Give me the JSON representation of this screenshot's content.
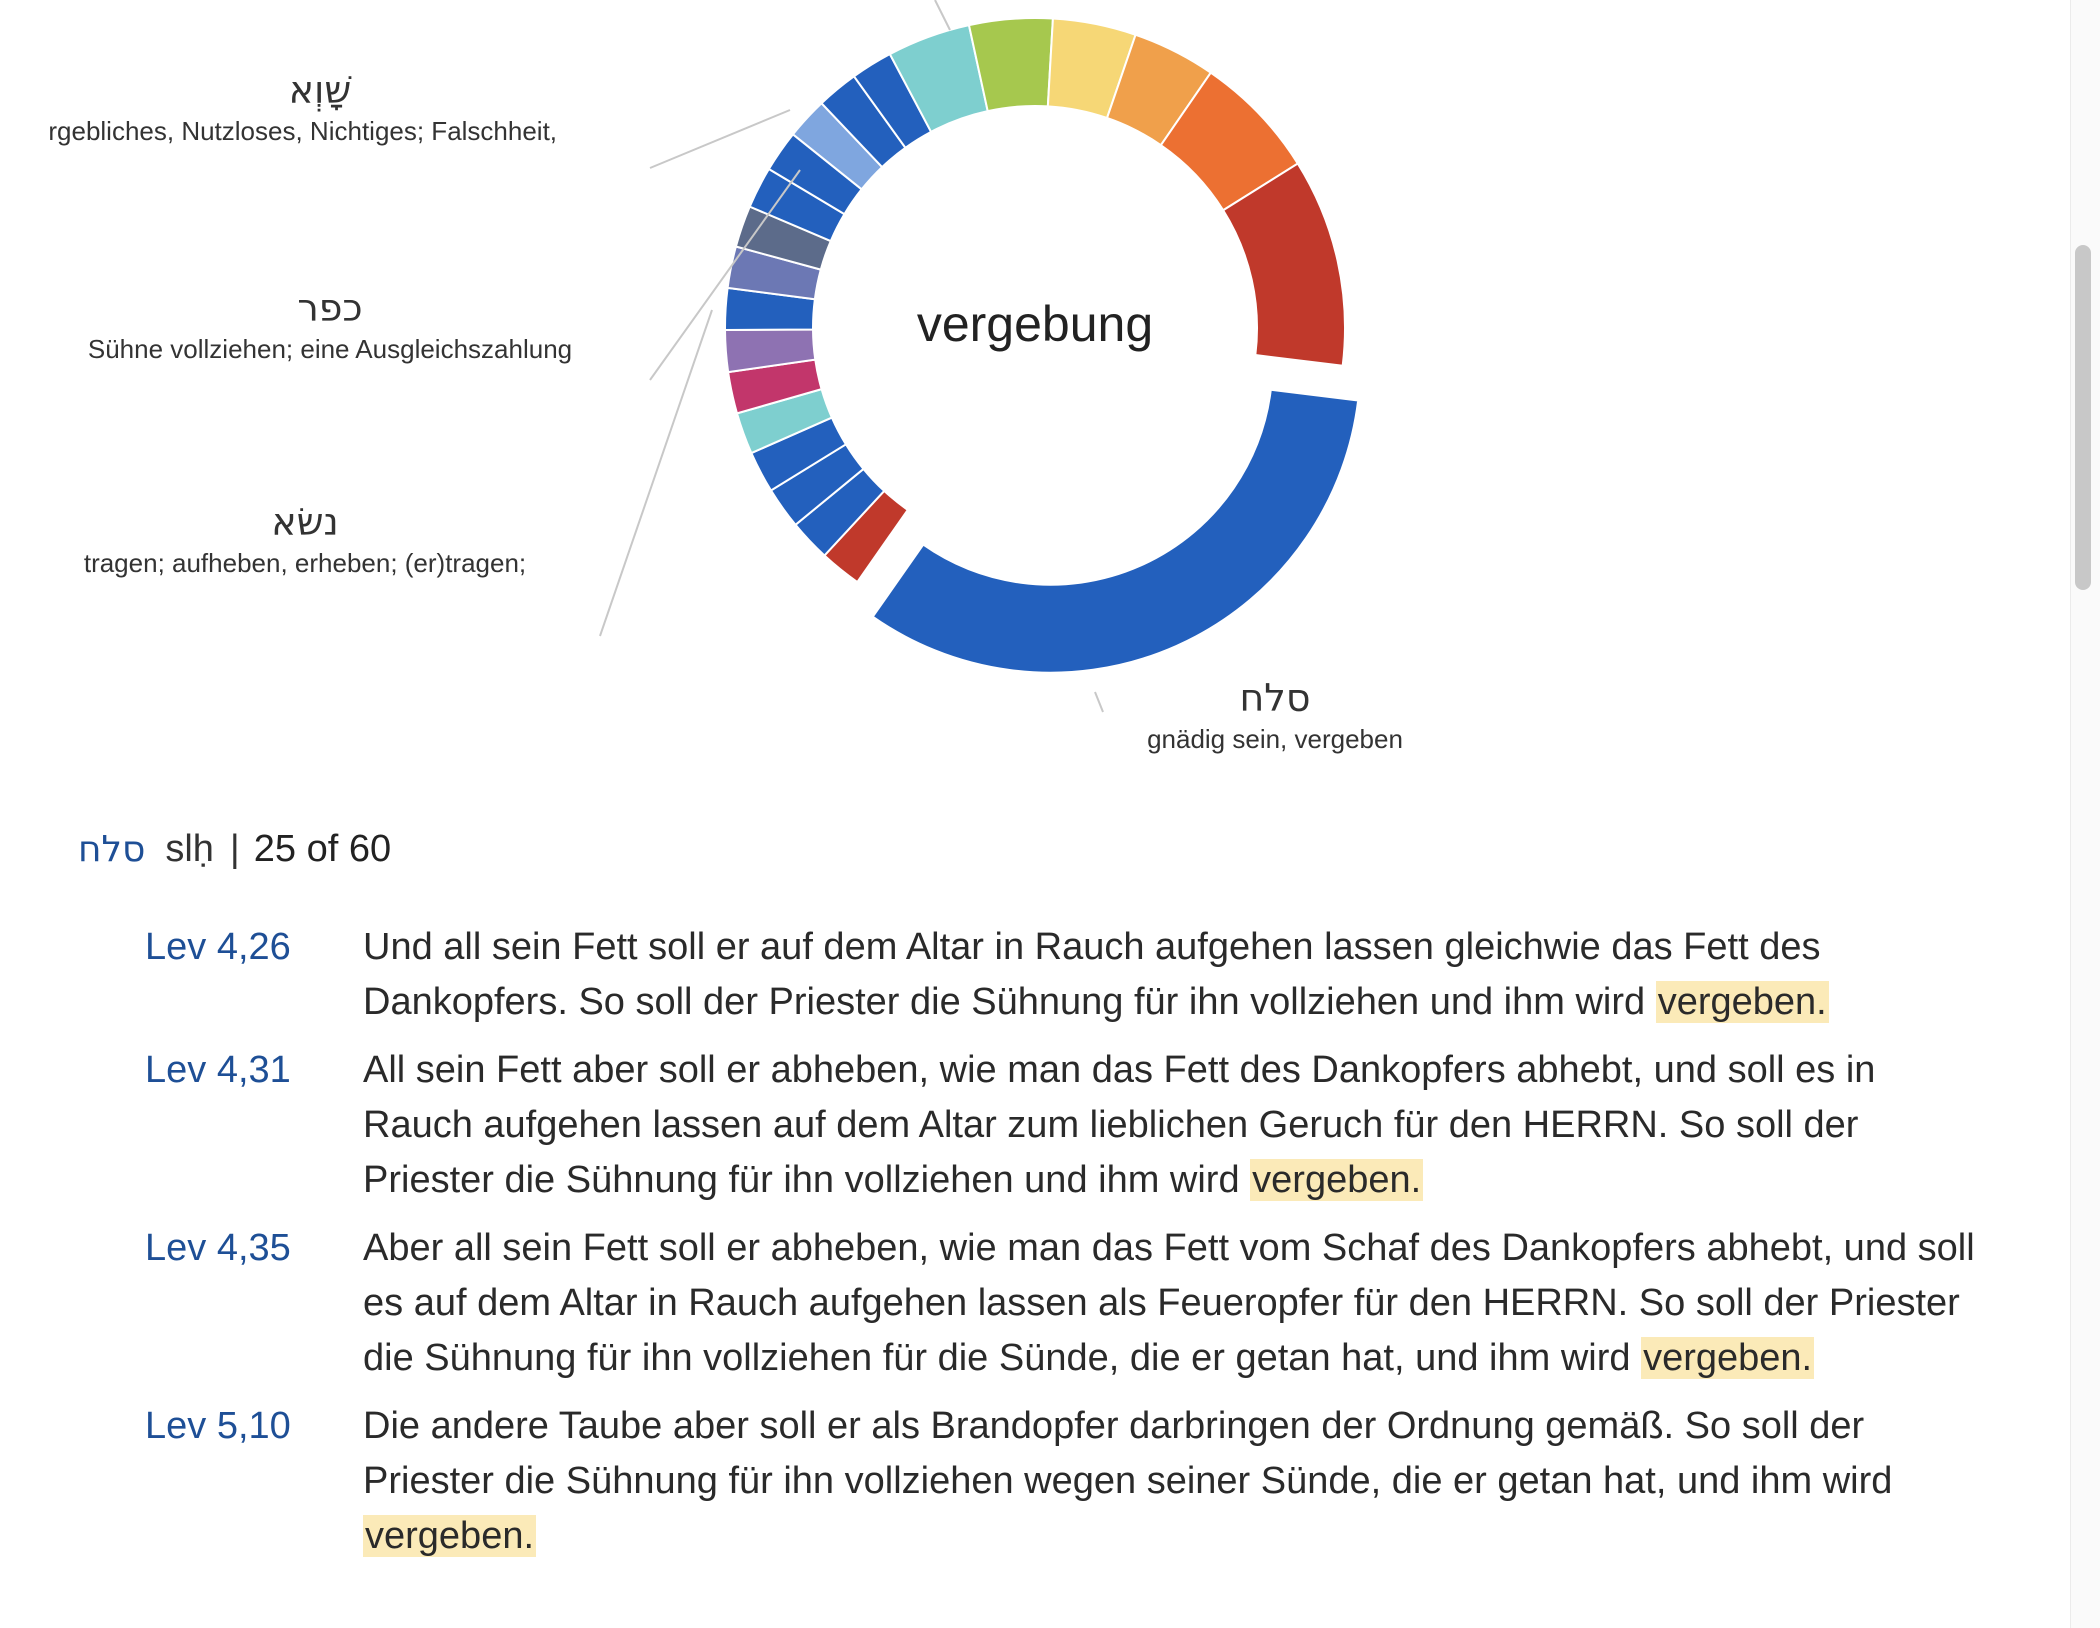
{
  "chart": {
    "center_label": "vergebung",
    "labels": [
      {
        "hebrew": "שָׁוְא",
        "gloss": "Vergebliches, Nutzloses, Nichtiges; Falschheit,"
      },
      {
        "hebrew": "כפר",
        "gloss": "Sühne vollziehen; eine Ausgleichszahlung"
      },
      {
        "hebrew": "נשׂא",
        "gloss": "tragen; aufheben, erheben; (er)tragen;"
      },
      {
        "hebrew": "סלח",
        "gloss": "gnädig sein, vergeben"
      }
    ]
  },
  "chart_data": {
    "type": "pie",
    "center_label": "vergebung",
    "slices": [
      {
        "label": "סלח",
        "gloss": "gnädig sein, vergeben",
        "value": 40.8,
        "color": "#2360bd",
        "exploded": true
      },
      {
        "label": "",
        "value": 2.7,
        "color": "#c0392b"
      },
      {
        "label": "",
        "value": 2.7,
        "color": "#2360bd"
      },
      {
        "label": "",
        "value": 2.7,
        "color": "#2360bd"
      },
      {
        "label": "",
        "value": 2.7,
        "color": "#2360bd"
      },
      {
        "label": "",
        "value": 2.7,
        "color": "#7ecfcf"
      },
      {
        "label": "",
        "value": 2.7,
        "color": "#c2366b"
      },
      {
        "label": "",
        "value": 2.7,
        "color": "#8e72b2"
      },
      {
        "label": "",
        "value": 2.7,
        "color": "#2360bd"
      },
      {
        "label": "",
        "value": 2.7,
        "color": "#6c78b4"
      },
      {
        "label": "",
        "value": 2.7,
        "color": "#5c6b8a"
      },
      {
        "label": "",
        "value": 2.7,
        "color": "#2360bd"
      },
      {
        "label": "",
        "value": 2.7,
        "color": "#2360bd"
      },
      {
        "label": "",
        "value": 2.7,
        "color": "#7fa6df"
      },
      {
        "label": "",
        "value": 2.7,
        "color": "#2360bd"
      },
      {
        "label": "",
        "value": 2.7,
        "color": "#2360bd"
      },
      {
        "label": "",
        "value": 5.4,
        "color": "#7ecfcf"
      },
      {
        "label": "",
        "value": 5.4,
        "color": "#a6c84e"
      },
      {
        "label": "",
        "value": 5.4,
        "color": "#f6d776"
      },
      {
        "label": "",
        "value": 5.4,
        "color": "#f0a04b"
      },
      {
        "label": "",
        "value": 8.1,
        "color": "#ec7032"
      },
      {
        "label": "",
        "value": 13.5,
        "color": "#c0392b"
      }
    ]
  },
  "result": {
    "hebrew": "סלח",
    "translit": "slḥ",
    "separator": "|",
    "count": "25 of 60"
  },
  "verses": [
    {
      "ref": "Lev 4,26",
      "text": "Und all sein Fett soll er auf dem Altar in Rauch aufgehen lassen gleichwie das Fett des Dankopfers. So soll der Priester die Sühnung für ihn vollziehen und ihm wird",
      "highlight": "vergeben."
    },
    {
      "ref": "Lev 4,31",
      "text": "All sein Fett aber soll er abheben, wie man das Fett des Dankopfers abhebt, und soll es in Rauch aufgehen lassen auf dem Altar zum lieblichen Geruch für den HERRN. So soll der Priester die Sühnung für ihn vollziehen und ihm wird",
      "highlight": "vergeben."
    },
    {
      "ref": "Lev 4,35",
      "text": "Aber all sein Fett soll er abheben, wie man das Fett vom Schaf des Dankopfers abhebt, und soll es auf dem Altar in Rauch aufgehen lassen als Feueropfer für den HERRN. So soll der Priester die Sühnung für ihn vollziehen für die Sünde, die er getan hat, und ihm wird",
      "highlight": "vergeben."
    },
    {
      "ref": "Lev 5,10",
      "text": "Die andere Taube aber soll er als Brandopfer darbringen der Ordnung gemäß. So soll der Priester die Sühnung für ihn vollziehen wegen seiner Sünde, die er getan hat, und ihm wird",
      "highlight": "vergeben."
    }
  ]
}
